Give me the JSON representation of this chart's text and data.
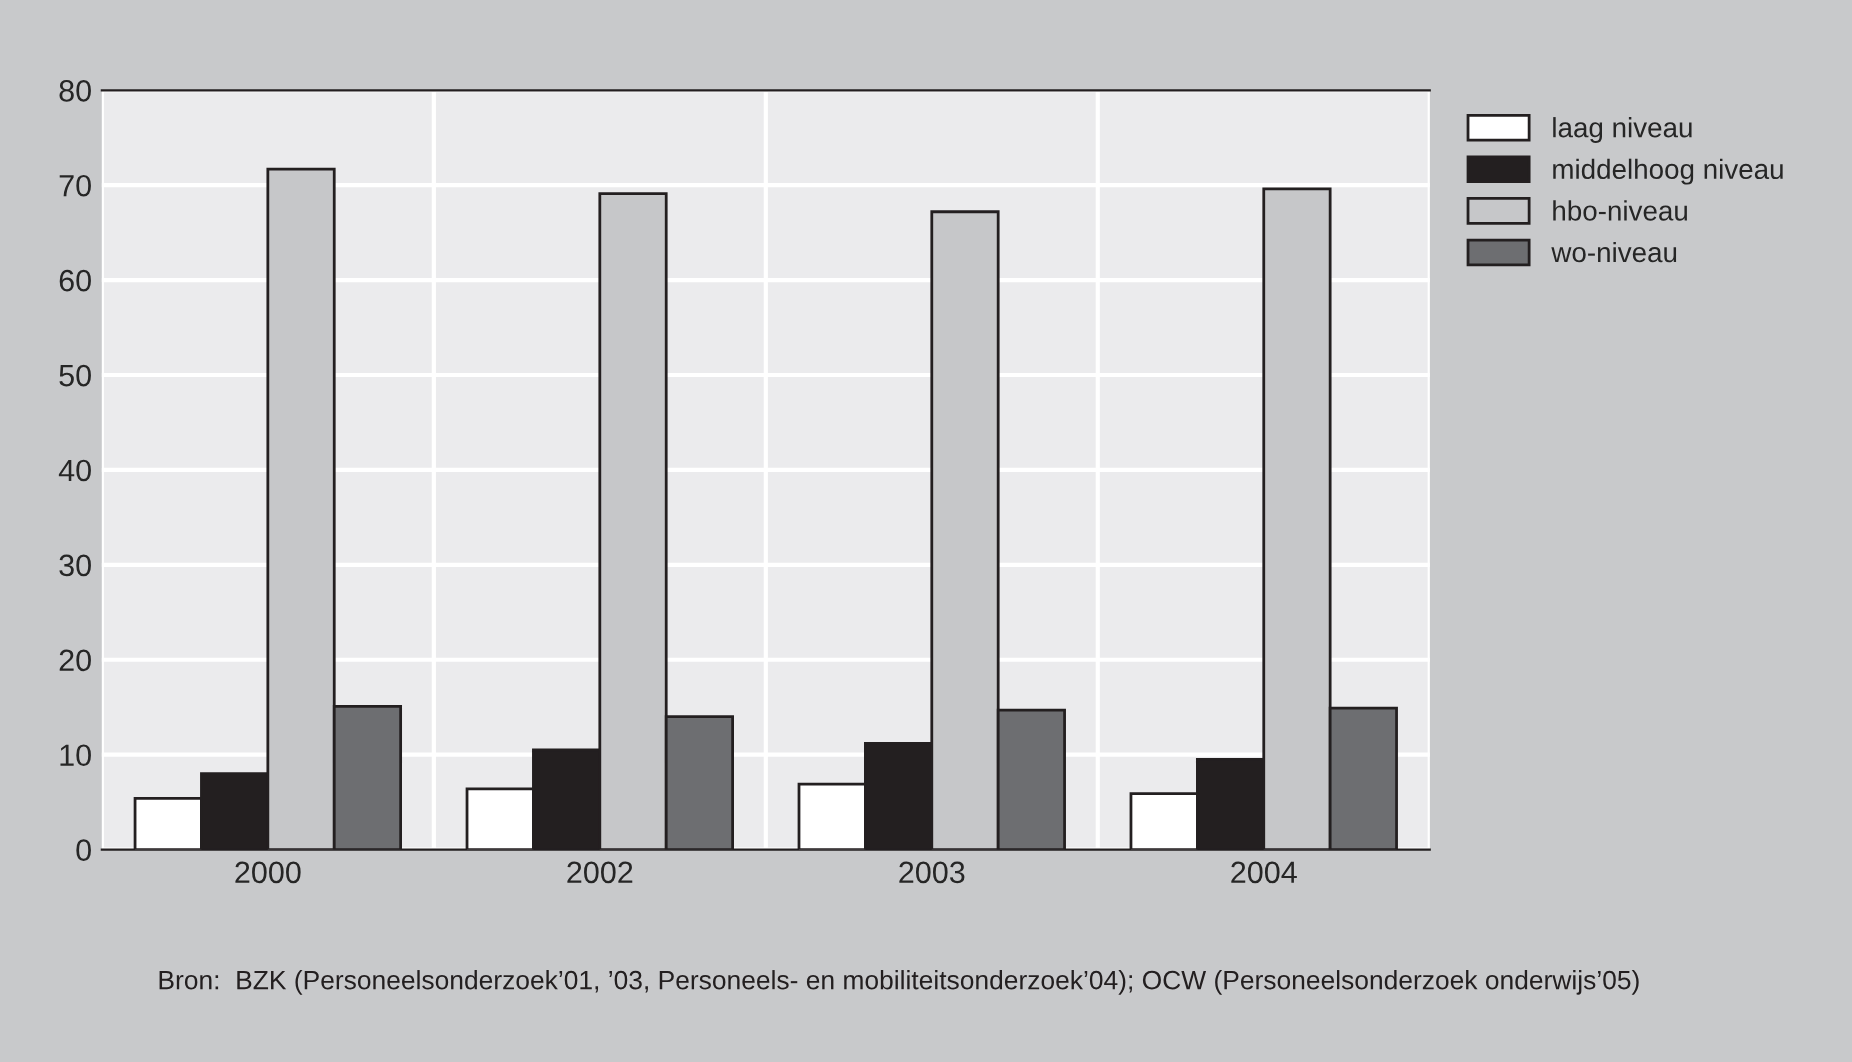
{
  "chart_data": {
    "type": "bar",
    "categories": [
      "2000",
      "2002",
      "2003",
      "2004"
    ],
    "series": [
      {
        "name": "laag niveau",
        "color": "#ffffff",
        "values": [
          5.4,
          6.4,
          6.9,
          5.9
        ]
      },
      {
        "name": "middelhoog niveau",
        "color": "#231f20",
        "values": [
          8.0,
          10.5,
          11.2,
          9.5
        ]
      },
      {
        "name": "hbo-niveau",
        "color": "#c6c7c9",
        "values": [
          71.7,
          69.1,
          67.2,
          69.6
        ]
      },
      {
        "name": "wo-niveau",
        "color": "#6d6e71",
        "values": [
          15.1,
          14.0,
          14.7,
          14.9
        ]
      }
    ],
    "ylim": [
      0,
      80
    ],
    "yticks": [
      0,
      10,
      20,
      30,
      40,
      50,
      60,
      70,
      80
    ],
    "grid": true,
    "legend": "top right",
    "annotations": [
      "Bron:  BZK (Personeelsonderzoek’01, ’03, Personeels- en mobiliteitsonderzoek’04); OCW (Personeelsonderzoek onderwijs’05)"
    ]
  }
}
